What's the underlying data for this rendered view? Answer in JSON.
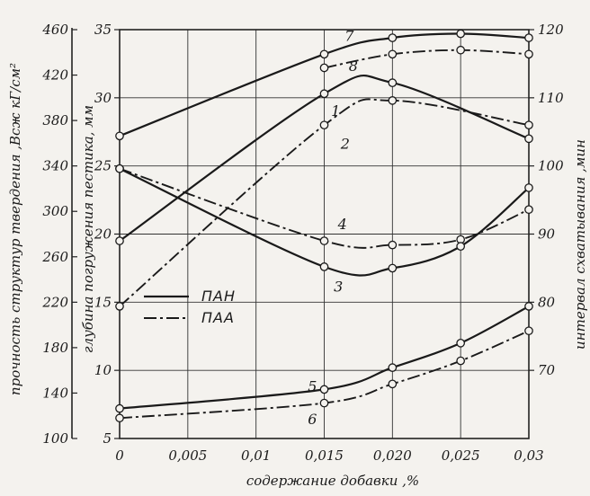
{
  "chart_data": {
    "type": "line",
    "title": "",
    "xlabel": "содержание добавки ,%",
    "xlim": [
      0,
      0.03
    ],
    "x_tick_labels": [
      "0",
      "0,005",
      "0,01",
      "0,015",
      "0,020",
      "0,025",
      "0,03"
    ],
    "x_tick_values": [
      0,
      0.005,
      0.01,
      0.015,
      0.02,
      0.025,
      0.03
    ],
    "y_axes": [
      {
        "key": "strength",
        "label": "прочность структур твердения ,Всж кГ/см²",
        "ylim": [
          100,
          460
        ],
        "tick_labels": [
          "100",
          "140",
          "180",
          "220",
          "260",
          "300",
          "340",
          "380",
          "420",
          "460"
        ]
      },
      {
        "key": "depth",
        "label": "глубина погружения пестика, мм",
        "ylim": [
          5,
          35
        ],
        "tick_labels": [
          "5",
          "10",
          "15",
          "20",
          "25",
          "30",
          "35"
        ],
        "tick_values": [
          5,
          10,
          15,
          20,
          25,
          30,
          35
        ]
      },
      {
        "key": "setting",
        "label": "интервал схватывания ,мин",
        "ylim": [
          60,
          120
        ],
        "tick_labels": [
          "70",
          "80",
          "90",
          "100",
          "110",
          "120"
        ],
        "tick_values": [
          70,
          80,
          90,
          100,
          110,
          120
        ]
      }
    ],
    "grid": true,
    "legend": {
      "placement": "left-center",
      "entries": [
        {
          "label": "ПАН",
          "style": "solid"
        },
        {
          "label": "ПАА",
          "style": "dash-dot"
        }
      ]
    },
    "series": [
      {
        "name": "7",
        "style": "solid",
        "x": [
          0,
          0.015,
          0.02,
          0.025,
          0.03
        ],
        "y": [
          27.2,
          33.2,
          34.4,
          34.7,
          34.4
        ],
        "label_pos": [
          0.0165,
          34.5
        ]
      },
      {
        "name": "8",
        "style": "dash-dot",
        "x": [
          0.015,
          0.02,
          0.025,
          0.03
        ],
        "y": [
          32.2,
          33.2,
          33.5,
          33.2
        ],
        "label_pos": [
          0.0168,
          32.3
        ]
      },
      {
        "name": "1",
        "style": "solid",
        "x": [
          0,
          0.015,
          0.02,
          0.03
        ],
        "y": [
          19.5,
          30.3,
          31.1,
          27.0
        ],
        "label_pos": [
          0.0155,
          29.0
        ]
      },
      {
        "name": "2",
        "style": "dash-dot",
        "x": [
          0,
          0.015,
          0.02,
          0.03
        ],
        "y": [
          14.7,
          28.0,
          29.8,
          28.0
        ],
        "label_pos": [
          0.0162,
          26.6
        ]
      },
      {
        "name": "4",
        "style": "dash-dot",
        "x": [
          0,
          0.015,
          0.02,
          0.025,
          0.03
        ],
        "y": [
          24.8,
          19.5,
          19.2,
          19.6,
          21.8
        ],
        "label_pos": [
          0.016,
          20.7
        ]
      },
      {
        "name": "3",
        "style": "solid",
        "x": [
          0,
          0.015,
          0.02,
          0.025,
          0.03
        ],
        "y": [
          24.8,
          17.6,
          17.5,
          19.1,
          23.4
        ],
        "label_pos": [
          0.0157,
          16.1
        ]
      },
      {
        "name": "5",
        "style": "solid",
        "x": [
          0,
          0.015,
          0.02,
          0.025,
          0.03
        ],
        "y": [
          7.2,
          8.6,
          10.2,
          12.0,
          14.7
        ],
        "label_pos": [
          0.0138,
          8.8
        ]
      },
      {
        "name": "6",
        "style": "dash-dot",
        "x": [
          0,
          0.015,
          0.02,
          0.025,
          0.03
        ],
        "y": [
          6.5,
          7.6,
          9.0,
          10.7,
          12.9
        ],
        "label_pos": [
          0.0138,
          6.4
        ]
      }
    ]
  }
}
